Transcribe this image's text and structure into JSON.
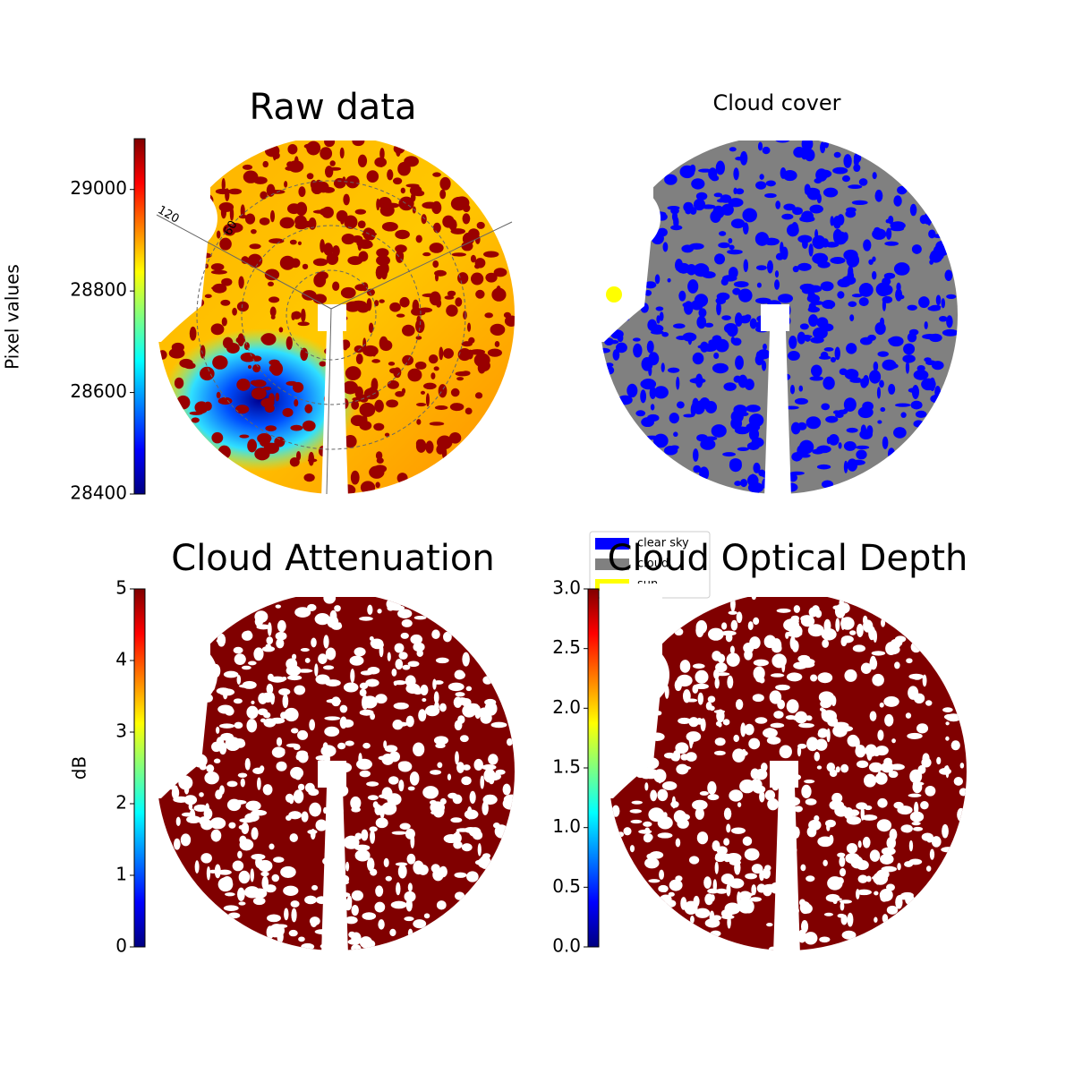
{
  "chart_data": [
    {
      "type": "image",
      "title": "Raw data",
      "colormap": "jet",
      "ylabel": "Pixel values",
      "ylim": [
        28400,
        29100
      ],
      "yticks": [
        28400,
        28600,
        28800,
        29000
      ],
      "annotations": [
        "120",
        "60"
      ]
    },
    {
      "type": "image",
      "title": "Cloud cover",
      "series": [
        {
          "name": "clear sky",
          "color": "#0000ff"
        },
        {
          "name": "cloud",
          "color": "#808080"
        },
        {
          "name": "sun",
          "color": "#ffff00"
        }
      ]
    },
    {
      "type": "image",
      "title": "Cloud Attenuation",
      "colormap": "jet",
      "ylabel": "dB",
      "ylim": [
        0,
        5
      ],
      "yticks": [
        0,
        1,
        2,
        3,
        4,
        5
      ]
    },
    {
      "type": "image",
      "title": "Cloud Optical Depth",
      "colormap": "jet",
      "ylim": [
        0,
        3
      ],
      "yticks": [
        {
          "value": 0,
          "label": "0.0"
        },
        0.5,
        {
          "value": 1,
          "label": "1.0"
        },
        1.5,
        {
          "value": 2,
          "label": "2.0"
        },
        2.5,
        {
          "value": 3,
          "label": "3.0"
        }
      ]
    }
  ]
}
